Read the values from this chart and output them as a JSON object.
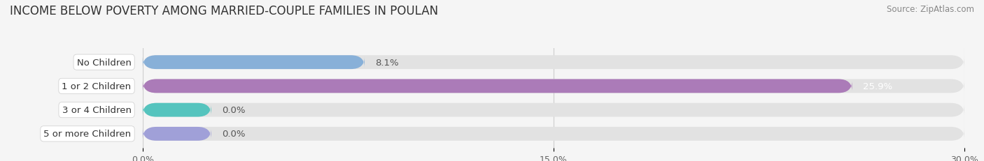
{
  "title": "INCOME BELOW POVERTY AMONG MARRIED-COUPLE FAMILIES IN POULAN",
  "source": "Source: ZipAtlas.com",
  "categories": [
    "No Children",
    "1 or 2 Children",
    "3 or 4 Children",
    "5 or more Children"
  ],
  "values": [
    8.1,
    25.9,
    0.0,
    0.0
  ],
  "bar_colors": [
    "#88b0d8",
    "#ab7bb8",
    "#55c4be",
    "#a0a0d8"
  ],
  "label_colors": [
    "#333333",
    "#333333",
    "#333333",
    "#333333"
  ],
  "value_label_colors": [
    "#555555",
    "#ffffff",
    "#555555",
    "#555555"
  ],
  "xlim": [
    0,
    30.0
  ],
  "xticks": [
    0.0,
    15.0,
    30.0
  ],
  "xtick_labels": [
    "0.0%",
    "15.0%",
    "30.0%"
  ],
  "background_color": "#f5f5f5",
  "bar_background_color": "#e2e2e2",
  "bar_height": 0.58,
  "zero_bar_width": 2.5,
  "title_fontsize": 12,
  "label_fontsize": 9.5,
  "tick_fontsize": 9,
  "source_fontsize": 8.5
}
